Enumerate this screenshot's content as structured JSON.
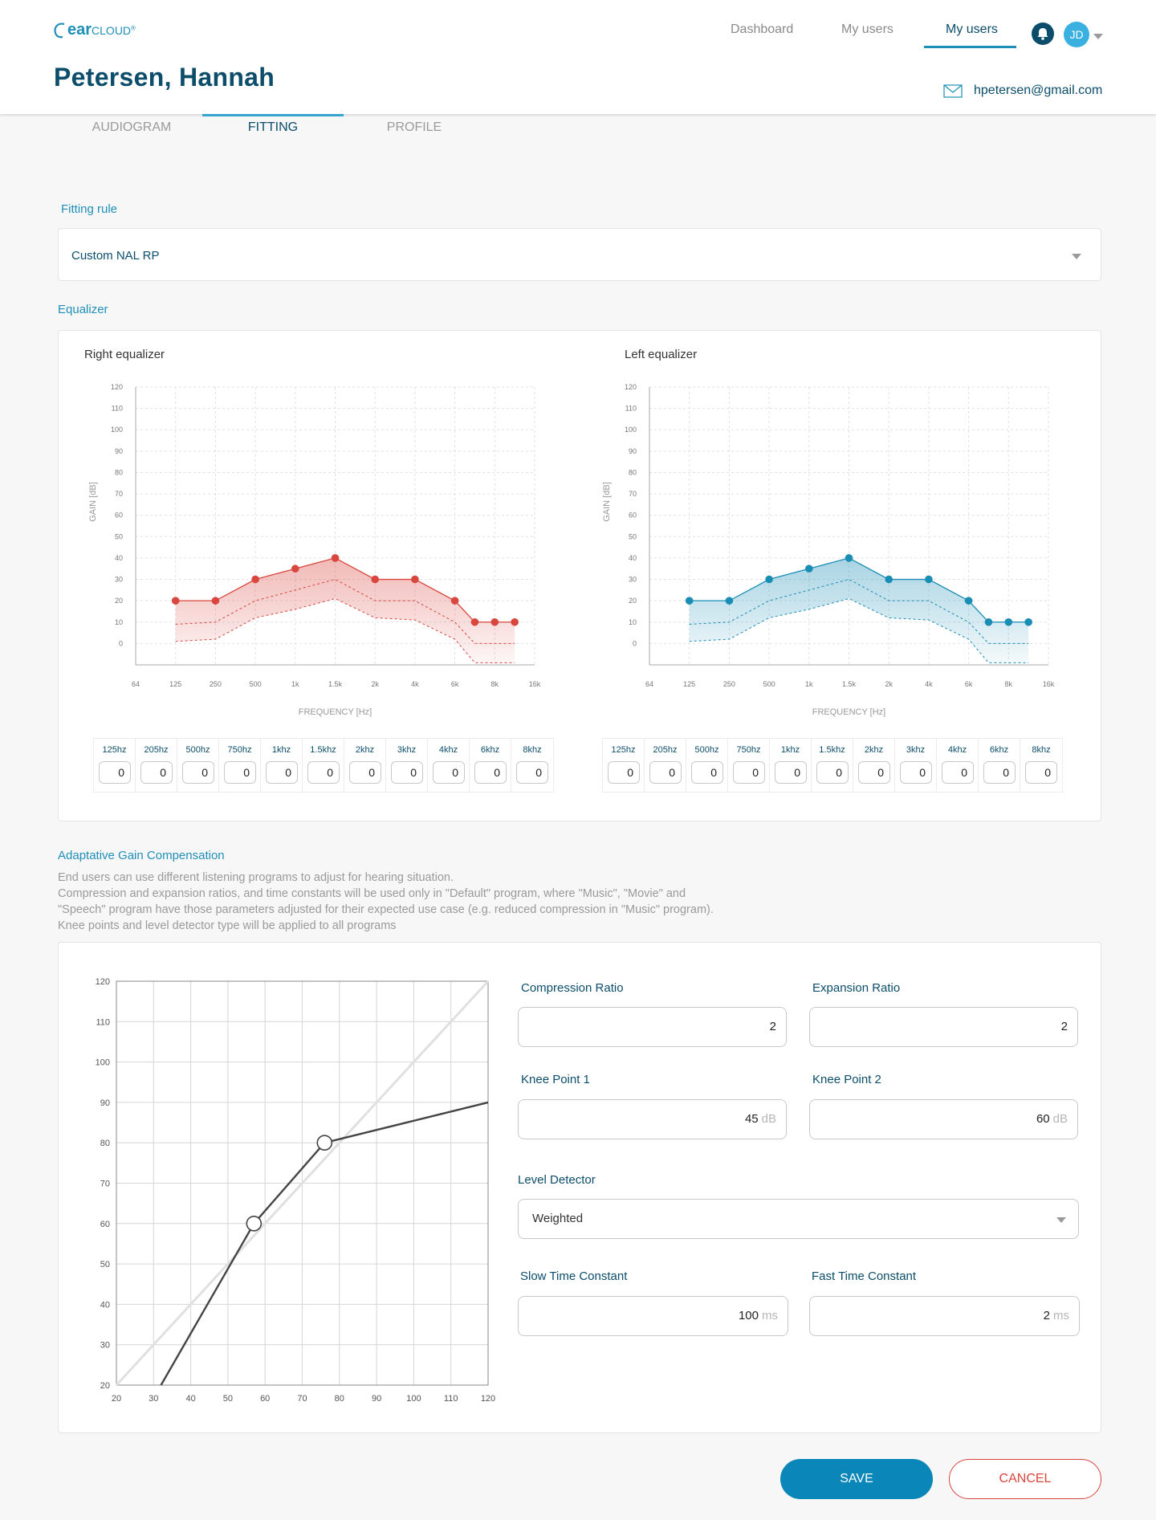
{
  "brand": {
    "logo_ear": "ear",
    "logo_cloud": "CLOUD",
    "logo_mark": "®"
  },
  "nav": {
    "items": [
      "Dashboard",
      "My users",
      "My users"
    ],
    "active_index": 2
  },
  "user": {
    "initials": "JD"
  },
  "patient": {
    "name": "Petersen, Hannah",
    "email": "hpetersen@gmail.com"
  },
  "tabs": {
    "items": [
      "AUDIOGRAM",
      "FITTING",
      "PROFILE"
    ],
    "active_index": 1
  },
  "fitting_rule": {
    "label": "Fitting rule",
    "value": "Custom NAL RP"
  },
  "equalizer": {
    "label": "Equalizer",
    "bands": [
      "125hz",
      "205hz",
      "500hz",
      "750hz",
      "1khz",
      "1.5khz",
      "2khz",
      "3khz",
      "4khz",
      "6khz",
      "8khz"
    ],
    "right_values": [
      "0",
      "0",
      "0",
      "0",
      "0",
      "0",
      "0",
      "0",
      "0",
      "0",
      "0"
    ],
    "left_values": [
      "0",
      "0",
      "0",
      "0",
      "0",
      "0",
      "0",
      "0",
      "0",
      "0",
      "0"
    ]
  },
  "chart_data": [
    {
      "type": "line",
      "title": "Right equalizer",
      "xlabel": "FREQUENCY [Hz]",
      "ylabel": "GAIN [dB]",
      "x_ticks": [
        "64",
        "125",
        "250",
        "500",
        "1k",
        "1.5k",
        "2k",
        "4k",
        "6k",
        "8k",
        "16k"
      ],
      "y_ticks": [
        0,
        10,
        20,
        30,
        40,
        50,
        60,
        70,
        80,
        90,
        100,
        110,
        120
      ],
      "ylim": [
        -10,
        120
      ],
      "grid": true,
      "color": "#d9463e",
      "x": [
        1,
        2,
        3,
        4,
        5,
        6,
        7,
        8,
        8.5,
        9,
        9.5
      ],
      "series": [
        {
          "values": [
            20,
            20,
            30,
            35,
            40,
            30,
            30,
            20,
            10,
            10,
            10
          ],
          "markers": true
        },
        {
          "values": [
            9,
            10,
            20,
            25,
            30,
            20,
            20,
            10,
            0,
            0,
            0
          ],
          "style": "dashed"
        },
        {
          "values": [
            1,
            2,
            12,
            16,
            21,
            12,
            11,
            2,
            -9,
            -9,
            -9
          ],
          "style": "dashed"
        }
      ]
    },
    {
      "type": "line",
      "title": "Left equalizer",
      "xlabel": "FREQUENCY [Hz]",
      "ylabel": "GAIN [dB]",
      "x_ticks": [
        "64",
        "125",
        "250",
        "500",
        "1k",
        "1.5k",
        "2k",
        "4k",
        "6k",
        "8k",
        "16k"
      ],
      "y_ticks": [
        0,
        10,
        20,
        30,
        40,
        50,
        60,
        70,
        80,
        90,
        100,
        110,
        120
      ],
      "ylim": [
        -10,
        120
      ],
      "grid": true,
      "color": "#1a8db5",
      "x": [
        1,
        2,
        3,
        4,
        5,
        6,
        7,
        8,
        8.5,
        9,
        9.5
      ],
      "series": [
        {
          "values": [
            20,
            20,
            30,
            35,
            40,
            30,
            30,
            20,
            10,
            10,
            10
          ],
          "markers": true
        },
        {
          "values": [
            9,
            10,
            20,
            25,
            30,
            20,
            20,
            10,
            0,
            0,
            0
          ],
          "style": "dashed"
        },
        {
          "values": [
            1,
            2,
            12,
            16,
            21,
            12,
            11,
            2,
            -9,
            -9,
            -9
          ],
          "style": "dashed"
        }
      ]
    },
    {
      "type": "line",
      "x_ticks": [
        20,
        30,
        40,
        50,
        60,
        70,
        80,
        90,
        100,
        110,
        120
      ],
      "y_ticks": [
        20,
        30,
        40,
        50,
        60,
        70,
        80,
        90,
        100,
        110,
        120
      ],
      "xlim": [
        20,
        120
      ],
      "ylim": [
        20,
        120
      ],
      "grid": true,
      "reference_line": {
        "x": [
          20,
          120
        ],
        "y": [
          20,
          120
        ]
      },
      "curve": {
        "x": [
          32,
          57,
          76,
          120
        ],
        "y": [
          20,
          60,
          80,
          90
        ]
      },
      "knee_points": {
        "x": [
          57,
          76
        ],
        "y": [
          60,
          80
        ]
      }
    }
  ],
  "agc": {
    "label": "Adaptative Gain Compensation",
    "description": [
      "End users can use different listening programs to adjust for hearing situation.",
      "Compression and expansion ratios, and time constants will be used only in \"Default\" program, where \"Music\", \"Movie\" and",
      "\"Speech\" program have those parameters adjusted for their expected use case (e.g. reduced compression in \"Music\" program).",
      "Knee points and level detector type will be applied to all programs"
    ],
    "compression_ratio": {
      "label": "Compression Ratio",
      "value": "2"
    },
    "expansion_ratio": {
      "label": "Expansion Ratio",
      "value": "2"
    },
    "knee_point_1": {
      "label": "Knee Point 1",
      "value": "45",
      "unit": "dB"
    },
    "knee_point_2": {
      "label": "Knee Point 2",
      "value": "60",
      "unit": "dB"
    },
    "level_detector": {
      "label": "Level Detector",
      "value": "Weighted"
    },
    "slow_time_constant": {
      "label": "Slow Time Constant",
      "value": "100",
      "unit": "ms"
    },
    "fast_time_constant": {
      "label": "Fast Time Constant",
      "value": "2",
      "unit": "ms"
    }
  },
  "actions": {
    "save": "SAVE",
    "cancel": "CANCEL"
  },
  "colors": {
    "primary": "#0b4d6a",
    "accent": "#1f8fb8",
    "danger": "#d9463e"
  }
}
